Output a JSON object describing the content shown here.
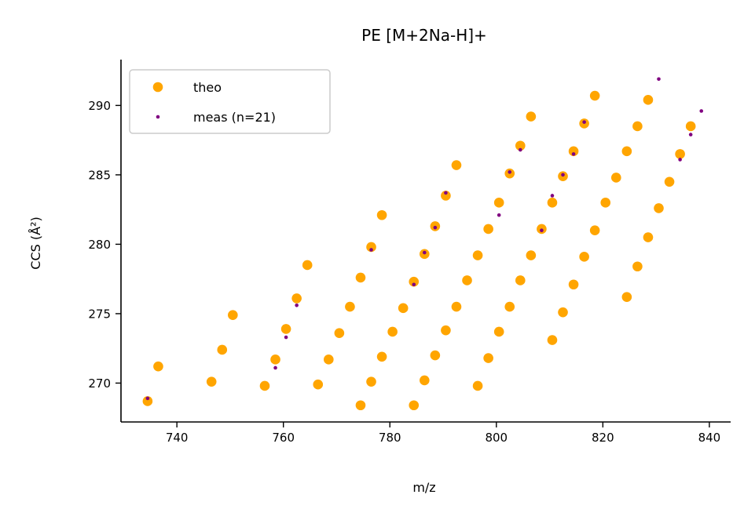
{
  "chart_data": {
    "type": "scatter",
    "title": "PE [M+2Na-H]+",
    "xlabel": "m/z",
    "ylabel": "CCS (Å²)",
    "xlim": [
      729.5,
      844
    ],
    "ylim": [
      267.2,
      293.3
    ],
    "xticks": [
      740,
      760,
      780,
      800,
      820,
      840
    ],
    "yticks": [
      270,
      275,
      280,
      285,
      290
    ],
    "legend_position": "top-left",
    "grid": false,
    "series": [
      {
        "name": "theo",
        "color": "#FFA500",
        "x": [
          734.5,
          736.5,
          746.5,
          748.5,
          750.5,
          756.5,
          758.5,
          760.5,
          762.5,
          764.5,
          766.5,
          768.5,
          770.5,
          772.5,
          774.5,
          774.5,
          776.5,
          776.5,
          778.5,
          778.5,
          780.5,
          782.5,
          784.5,
          784.5,
          786.5,
          786.5,
          788.5,
          788.5,
          790.5,
          790.5,
          792.5,
          792.5,
          794.5,
          796.5,
          796.5,
          798.5,
          798.5,
          800.5,
          800.5,
          802.5,
          802.5,
          804.5,
          804.5,
          806.5,
          806.5,
          808.5,
          810.5,
          810.5,
          812.5,
          812.5,
          814.5,
          814.5,
          816.5,
          816.5,
          818.5,
          818.5,
          820.5,
          822.5,
          824.5,
          824.5,
          826.5,
          826.5,
          828.5,
          828.5,
          830.5,
          832.5,
          834.5,
          836.5
        ],
        "y": [
          268.7,
          271.2,
          270.1,
          272.4,
          274.9,
          269.8,
          271.7,
          273.9,
          276.1,
          278.5,
          269.9,
          271.7,
          273.6,
          275.5,
          268.4,
          277.6,
          270.1,
          279.8,
          271.9,
          282.1,
          273.7,
          275.4,
          268.4,
          277.3,
          270.2,
          279.3,
          272.0,
          281.3,
          273.8,
          283.5,
          275.5,
          285.7,
          277.4,
          269.8,
          279.2,
          271.8,
          281.1,
          273.7,
          283.0,
          275.5,
          285.1,
          277.4,
          287.1,
          279.2,
          289.2,
          281.1,
          273.1,
          283.0,
          275.1,
          284.9,
          277.1,
          286.7,
          279.1,
          288.7,
          281.0,
          290.7,
          283.0,
          284.8,
          276.2,
          286.7,
          278.4,
          288.5,
          280.5,
          290.4,
          282.6,
          284.5,
          286.5,
          288.5
        ]
      },
      {
        "name": "meas (n=21)",
        "color": "#800080",
        "x": [
          734.5,
          758.5,
          760.5,
          762.5,
          776.5,
          784.5,
          786.5,
          788.5,
          790.5,
          800.5,
          802.5,
          804.5,
          808.5,
          810.5,
          812.5,
          814.5,
          816.5,
          830.5,
          834.5,
          836.5,
          838.5
        ],
        "y": [
          268.9,
          271.1,
          273.3,
          275.6,
          279.6,
          277.1,
          279.4,
          281.2,
          283.7,
          282.1,
          285.2,
          286.8,
          281.0,
          283.5,
          285.0,
          286.5,
          288.8,
          291.9,
          286.1,
          287.9,
          289.6
        ]
      }
    ]
  }
}
